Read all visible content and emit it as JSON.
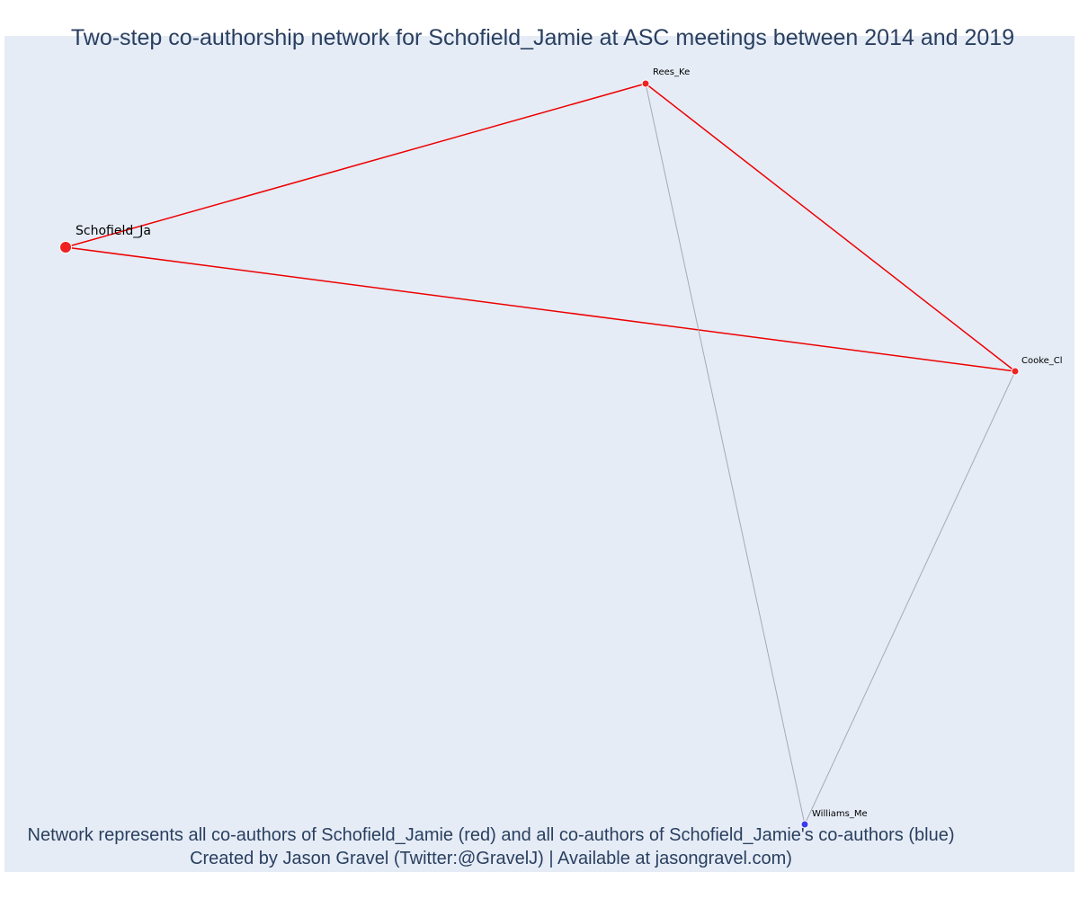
{
  "title": "Two-step co-authorship network for Schofield_Jamie at ASC meetings between 2014 and 2019",
  "caption": {
    "line1": "Network represents all co-authors of Schofield_Jamie (red) and all co-authors of Schofield_Jamie's co-authors (blue)",
    "line2": "Created by Jason Gravel (Twitter:@GravelJ) | Available at jasongravel.com)"
  },
  "colors": {
    "background": "#e5ecf6",
    "text": "#2a3f5f",
    "coauthor": "#ee2222",
    "second_step": "#3b3bee",
    "edge_direct": "#ee0000",
    "edge_indirect": "#a8a8b8"
  },
  "network": {
    "nodes": [
      {
        "id": "Schofield_Ja",
        "label": "Schofield_Ja",
        "group": "focal"
      },
      {
        "id": "Rees_Ke",
        "label": "Rees_Ke",
        "group": "coauthor"
      },
      {
        "id": "Cooke_Cl",
        "label": "Cooke_Cl",
        "group": "coauthor"
      },
      {
        "id": "Williams_Me",
        "label": "Williams_Me",
        "group": "second_step"
      }
    ],
    "edges": [
      {
        "source": "Schofield_Ja",
        "target": "Rees_Ke",
        "type": "direct"
      },
      {
        "source": "Schofield_Ja",
        "target": "Cooke_Cl",
        "type": "direct"
      },
      {
        "source": "Rees_Ke",
        "target": "Cooke_Cl",
        "type": "direct"
      },
      {
        "source": "Rees_Ke",
        "target": "Williams_Me",
        "type": "indirect"
      },
      {
        "source": "Cooke_Cl",
        "target": "Williams_Me",
        "type": "indirect"
      }
    ]
  }
}
